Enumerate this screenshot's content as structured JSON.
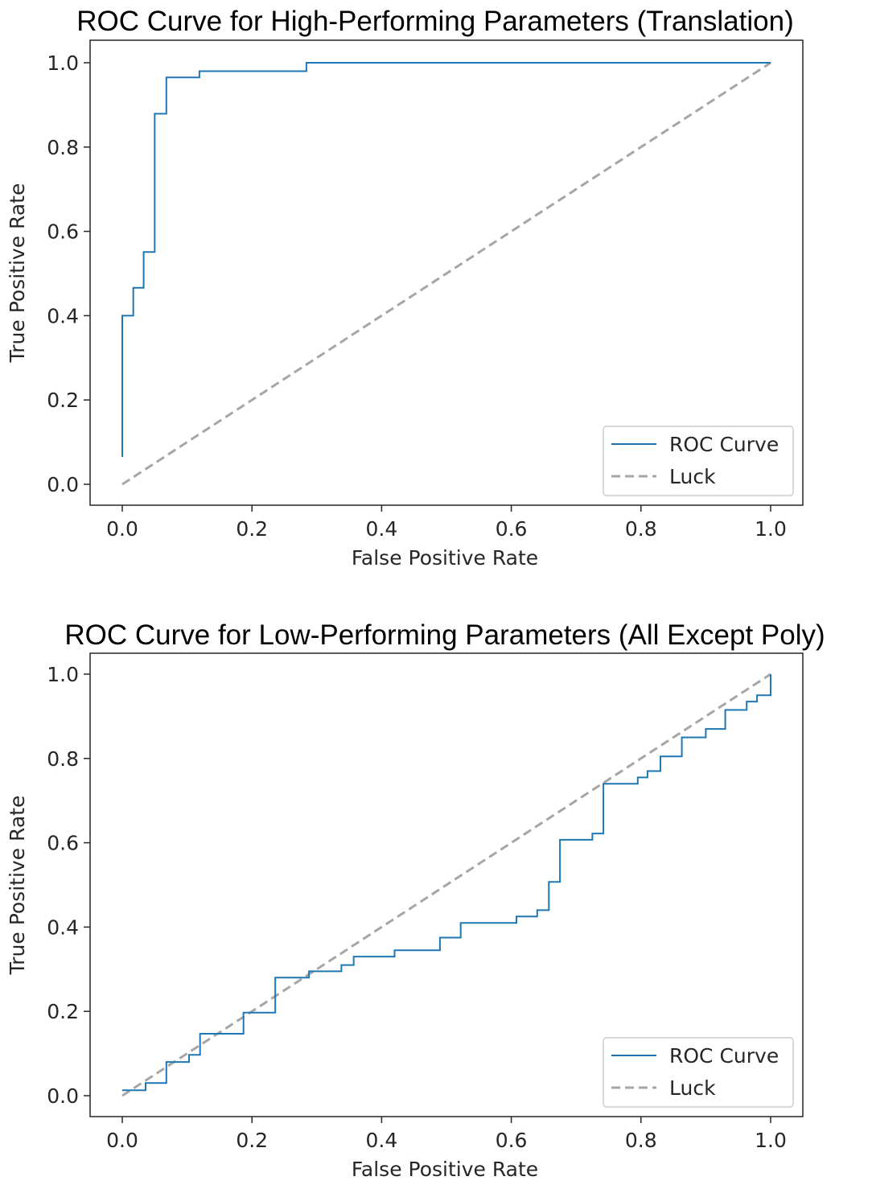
{
  "chart_data": [
    {
      "type": "line",
      "title": "ROC Curve for High-Performing Parameters (Translation)",
      "xlabel": "False Positive Rate",
      "ylabel": "True Positive Rate",
      "xlim": [
        0.0,
        1.0
      ],
      "ylim": [
        0.0,
        1.0
      ],
      "xticks": [
        "0.0",
        "0.2",
        "0.4",
        "0.6",
        "0.8",
        "1.0"
      ],
      "yticks": [
        "0.0",
        "0.2",
        "0.4",
        "0.6",
        "0.8",
        "1.0"
      ],
      "grid": false,
      "legend": "lower-right",
      "series": [
        {
          "name": "ROC Curve",
          "color": "#1f77b4",
          "style": "solid",
          "x": [
            0.0,
            0.0,
            0.0,
            0.017,
            0.017,
            0.033,
            0.033,
            0.05,
            0.05,
            0.068,
            0.068,
            0.119,
            0.119,
            0.284,
            0.284,
            1.0
          ],
          "y": [
            0.065,
            0.4,
            0.4,
            0.4,
            0.466,
            0.466,
            0.551,
            0.551,
            0.879,
            0.879,
            0.965,
            0.965,
            0.98,
            0.98,
            1.0,
            1.0
          ]
        },
        {
          "name": "Luck",
          "color": "#a6a6a6",
          "style": "dashed",
          "x": [
            0.0,
            1.0
          ],
          "y": [
            0.0,
            1.0
          ]
        }
      ]
    },
    {
      "type": "line",
      "title": "ROC Curve for Low-Performing Parameters (All Except Poly)",
      "xlabel": "False Positive Rate",
      "ylabel": "True Positive Rate",
      "xlim": [
        0.0,
        1.0
      ],
      "ylim": [
        0.0,
        1.0
      ],
      "xticks": [
        "0.0",
        "0.2",
        "0.4",
        "0.6",
        "0.8",
        "1.0"
      ],
      "yticks": [
        "0.0",
        "0.2",
        "0.4",
        "0.6",
        "0.8",
        "1.0"
      ],
      "grid": false,
      "legend": "lower-right",
      "series": [
        {
          "name": "ROC Curve",
          "color": "#1f77b4",
          "style": "solid",
          "x": [
            0.0,
            0.036,
            0.036,
            0.068,
            0.068,
            0.103,
            0.103,
            0.12,
            0.12,
            0.187,
            0.187,
            0.236,
            0.236,
            0.288,
            0.288,
            0.338,
            0.338,
            0.357,
            0.357,
            0.42,
            0.42,
            0.49,
            0.49,
            0.522,
            0.522,
            0.608,
            0.608,
            0.64,
            0.64,
            0.658,
            0.658,
            0.675,
            0.675,
            0.725,
            0.725,
            0.742,
            0.742,
            0.795,
            0.795,
            0.81,
            0.81,
            0.83,
            0.83,
            0.863,
            0.863,
            0.9,
            0.9,
            0.93,
            0.93,
            0.963,
            0.963,
            0.979,
            0.979,
            1.0,
            1.0
          ],
          "y": [
            0.013,
            0.013,
            0.03,
            0.03,
            0.08,
            0.08,
            0.097,
            0.097,
            0.147,
            0.147,
            0.197,
            0.197,
            0.28,
            0.28,
            0.295,
            0.295,
            0.31,
            0.31,
            0.33,
            0.33,
            0.345,
            0.345,
            0.375,
            0.375,
            0.41,
            0.41,
            0.425,
            0.425,
            0.44,
            0.44,
            0.507,
            0.507,
            0.607,
            0.607,
            0.622,
            0.622,
            0.74,
            0.74,
            0.755,
            0.755,
            0.77,
            0.77,
            0.805,
            0.805,
            0.85,
            0.85,
            0.87,
            0.87,
            0.915,
            0.915,
            0.935,
            0.935,
            0.95,
            0.95,
            1.0
          ]
        },
        {
          "name": "Luck",
          "color": "#a6a6a6",
          "style": "dashed",
          "x": [
            0.0,
            1.0
          ],
          "y": [
            0.0,
            1.0
          ]
        }
      ]
    }
  ]
}
